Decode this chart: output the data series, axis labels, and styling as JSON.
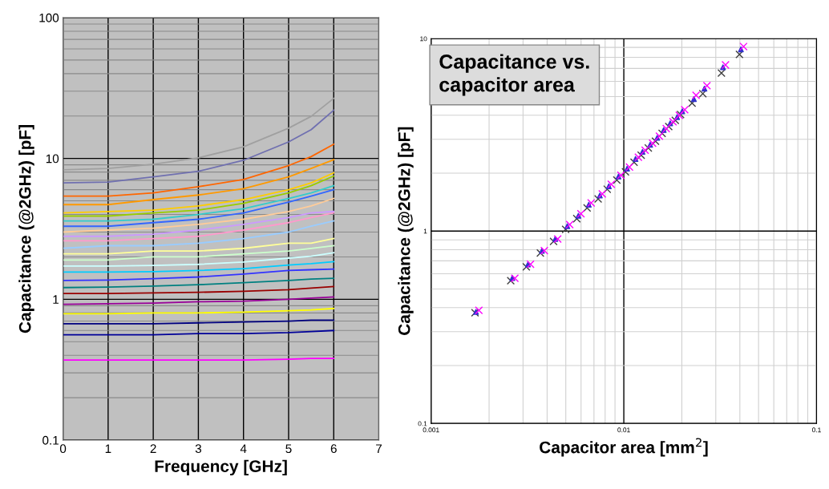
{
  "chart_data": [
    {
      "type": "line",
      "xlabel": "Frequency [GHz]",
      "ylabel": "Capacitance (@2GHz) [pF]",
      "log": "y",
      "grid": true,
      "legend": false,
      "marker": "none",
      "line_style": "solid",
      "x": [
        0,
        1,
        2,
        3,
        4,
        5,
        5.5,
        6
      ],
      "xlim": [
        0,
        7
      ],
      "xticks": [
        0,
        1,
        2,
        3,
        4,
        5,
        6,
        7
      ],
      "ylim": [
        0.1,
        100
      ],
      "yticks": [
        0.1,
        1,
        10,
        100
      ],
      "series": [
        {
          "color": "#a0a0a0",
          "values": [
            8.3,
            8.5,
            9.1,
            10.1,
            12.1,
            16.4,
            19.9,
            26.7
          ]
        },
        {
          "color": "#7070b0",
          "values": [
            6.7,
            6.8,
            7.4,
            8.1,
            9.7,
            13.1,
            16.0,
            22.0
          ]
        },
        {
          "color": "#ff6600",
          "values": [
            5.4,
            5.4,
            5.7,
            6.3,
            7.1,
            8.9,
            10.3,
            12.6
          ]
        },
        {
          "color": "#ff9900",
          "values": [
            4.7,
            4.7,
            5.1,
            5.5,
            6.1,
            7.4,
            8.5,
            9.8
          ]
        },
        {
          "color": "#ffcc00",
          "values": [
            4.1,
            4.2,
            4.3,
            4.6,
            5.1,
            6.0,
            6.7,
            7.9
          ]
        },
        {
          "color": "#99cc00",
          "values": [
            3.9,
            3.9,
            4.1,
            4.3,
            4.8,
            5.7,
            6.4,
            7.5
          ]
        },
        {
          "color": "#33cccc",
          "values": [
            3.6,
            3.6,
            3.7,
            4.0,
            4.4,
            5.2,
            5.7,
            6.4
          ]
        },
        {
          "color": "#3366ff",
          "values": [
            3.3,
            3.3,
            3.5,
            3.7,
            4.1,
            4.9,
            5.4,
            6.0
          ]
        },
        {
          "color": "#ffcc99",
          "values": [
            3.0,
            3.1,
            3.2,
            3.4,
            3.7,
            4.2,
            4.6,
            5.2
          ]
        },
        {
          "color": "#cc99ff",
          "values": [
            2.8,
            2.8,
            2.9,
            3.1,
            3.4,
            3.8,
            4.1,
            4.2
          ]
        },
        {
          "color": "#ff99cc",
          "values": [
            2.6,
            2.6,
            2.7,
            2.8,
            3.1,
            3.5,
            3.8,
            4.1
          ]
        },
        {
          "color": "#99ccff",
          "values": [
            2.3,
            2.4,
            2.4,
            2.5,
            2.7,
            3.0,
            3.3,
            3.6
          ]
        },
        {
          "color": "#ffff99",
          "values": [
            2.1,
            2.1,
            2.2,
            2.2,
            2.3,
            2.5,
            2.5,
            2.7
          ]
        },
        {
          "color": "#ccffcc",
          "values": [
            1.9,
            1.9,
            2.0,
            2.0,
            2.1,
            2.2,
            2.3,
            2.4
          ]
        },
        {
          "color": "#ccffff",
          "values": [
            1.72,
            1.72,
            1.74,
            1.77,
            1.84,
            1.96,
            2.02,
            2.14
          ]
        },
        {
          "color": "#00ccff",
          "values": [
            1.56,
            1.56,
            1.57,
            1.6,
            1.65,
            1.75,
            1.79,
            1.85
          ]
        },
        {
          "color": "#3333ff",
          "values": [
            1.36,
            1.37,
            1.4,
            1.44,
            1.51,
            1.6,
            1.62,
            1.64
          ]
        },
        {
          "color": "#008080",
          "values": [
            1.21,
            1.22,
            1.24,
            1.27,
            1.31,
            1.36,
            1.39,
            1.41
          ]
        },
        {
          "color": "#990000",
          "values": [
            1.1,
            1.1,
            1.11,
            1.12,
            1.14,
            1.17,
            1.2,
            1.23
          ]
        },
        {
          "color": "#990099",
          "values": [
            0.92,
            0.93,
            0.94,
            0.96,
            0.97,
            1.0,
            1.02,
            1.04
          ]
        },
        {
          "color": "#ffff00",
          "values": [
            0.79,
            0.79,
            0.8,
            0.8,
            0.81,
            0.83,
            0.84,
            0.86
          ]
        },
        {
          "color": "#000080",
          "values": [
            0.67,
            0.67,
            0.67,
            0.68,
            0.69,
            0.7,
            0.71,
            0.71
          ]
        },
        {
          "color": "#000099",
          "values": [
            0.56,
            0.56,
            0.56,
            0.57,
            0.57,
            0.58,
            0.59,
            0.6
          ]
        },
        {
          "color": "#ff00ff",
          "values": [
            0.37,
            0.37,
            0.37,
            0.37,
            0.37,
            0.375,
            0.38,
            0.38
          ]
        }
      ]
    },
    {
      "type": "scatter",
      "title": "Capacitance vs.\ncapacitor area",
      "xlabel": "Capacitor area [mm$^{2}$]",
      "ylabel": "Capacitance (@2GHz) [pF]",
      "log": "xy",
      "grid": true,
      "legend": false,
      "xlim": [
        0.001,
        0.1
      ],
      "xticks": [
        0.001,
        0.01,
        0.1
      ],
      "ylim": [
        0.1,
        10
      ],
      "yticks": [
        0.1,
        1,
        10
      ],
      "series": [
        {
          "color": "#404040",
          "marker": "cross",
          "x": [
            0.00169,
            0.00259,
            0.00312,
            0.00369,
            0.00432,
            0.00499,
            0.0057,
            0.00645,
            0.00736,
            0.0082,
            0.0092,
            0.0102,
            0.0113,
            0.0123,
            0.0134,
            0.0146,
            0.0158,
            0.0171,
            0.0185,
            0.0197,
            0.0226,
            0.0257,
            0.0321,
            0.0398
          ],
          "values": [
            0.376,
            0.552,
            0.652,
            0.769,
            0.883,
            1.02,
            1.16,
            1.32,
            1.47,
            1.65,
            1.84,
            2.03,
            2.28,
            2.48,
            2.7,
            2.93,
            3.22,
            3.49,
            3.76,
            4.03,
            4.62,
            5.18,
            6.62,
            8.28
          ]
        },
        {
          "color": "#3333cc",
          "marker": "triangle",
          "x": [
            0.00171,
            0.00264,
            0.00318,
            0.00376,
            0.00441,
            0.00509,
            0.00581,
            0.00658,
            0.00751,
            0.00836,
            0.00938,
            0.0104,
            0.0115,
            0.0125,
            0.0137,
            0.0149,
            0.0161,
            0.0174,
            0.0189,
            0.0201,
            0.0231,
            0.0262,
            0.0327,
            0.0405
          ],
          "values": [
            0.38,
            0.57,
            0.67,
            0.79,
            0.91,
            1.06,
            1.2,
            1.37,
            1.53,
            1.71,
            1.92,
            2.11,
            2.37,
            2.58,
            2.81,
            3.05,
            3.35,
            3.63,
            3.91,
            4.19,
            4.85,
            5.5,
            7.1,
            8.8
          ]
        },
        {
          "color": "#ff00ff",
          "marker": "cross",
          "x": [
            0.00177,
            0.00272,
            0.00328,
            0.00387,
            0.00454,
            0.00524,
            0.00599,
            0.00677,
            0.00773,
            0.00861,
            0.00966,
            0.0107,
            0.0119,
            0.0129,
            0.0141,
            0.0153,
            0.0166,
            0.018,
            0.0194,
            0.0207,
            0.0237,
            0.027,
            0.0337,
            0.0418
          ],
          "values": [
            0.387,
            0.568,
            0.672,
            0.792,
            0.91,
            1.08,
            1.23,
            1.4,
            1.56,
            1.75,
            1.95,
            2.15,
            2.42,
            2.63,
            2.86,
            3.11,
            3.41,
            3.7,
            3.99,
            4.27,
            5.08,
            5.7,
            7.3,
            9.1
          ]
        }
      ]
    }
  ]
}
